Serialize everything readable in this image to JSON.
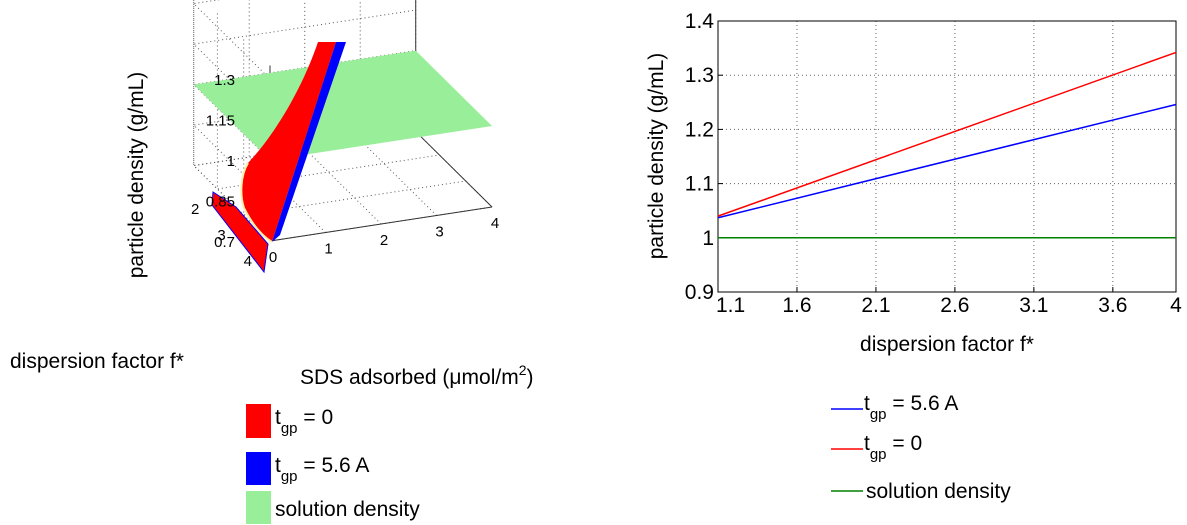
{
  "chart_data": [
    {
      "type": "surface3d",
      "zlabel": "particle density (g/mL)",
      "ylabel": "dispersion factor f*",
      "xlabel_prefix": "SDS adsorbed (",
      "xlabel_mu": "μ",
      "xlabel_unit": "mol/m",
      "xlabel_sup": "2",
      "xlabel_close": ")",
      "xticks": [
        "0",
        "1",
        "2",
        "3",
        "4"
      ],
      "yticks": [
        "2",
        "3",
        "4"
      ],
      "zticks": [
        "0.7",
        "0.85",
        "1",
        "1.15",
        "1.3"
      ],
      "xlim": [
        0,
        4
      ],
      "ylim": [
        1.1,
        4
      ],
      "zlim": [
        0.7,
        1.3
      ],
      "series": [
        {
          "name_main": "t",
          "name_sub": "gp",
          "name_rest": " = 0",
          "color": "#ff0000"
        },
        {
          "name_main": "t",
          "name_sub": "gp",
          "name_rest": " = 5.6 A",
          "color": "#0000ff"
        },
        {
          "name_main": "solution density",
          "name_sub": "",
          "name_rest": "",
          "color": "#99ee99",
          "value": 1.0
        }
      ]
    },
    {
      "type": "line",
      "xlabel": "dispersion factor f*",
      "ylabel": "particle density (g/mL)",
      "xticks": [
        "1.1",
        "1.6",
        "2.1",
        "2.6",
        "3.1",
        "3.6",
        "4"
      ],
      "yticks": [
        "0.9",
        "1",
        "1.1",
        "1.2",
        "1.3",
        "1.4"
      ],
      "xlim": [
        1.1,
        4
      ],
      "ylim": [
        0.9,
        1.4
      ],
      "grid": true,
      "series": [
        {
          "name_main": "t",
          "name_sub": "gp",
          "name_rest": " = 5.6 A",
          "color": "#0000ff",
          "x": [
            1.1,
            4
          ],
          "y": [
            1.037,
            1.246
          ]
        },
        {
          "name_main": "t",
          "name_sub": "gp",
          "name_rest": " = 0",
          "color": "#ff0000",
          "x": [
            1.1,
            4
          ],
          "y": [
            1.04,
            1.342
          ]
        },
        {
          "name_main": "solution density",
          "name_sub": "",
          "name_rest": "",
          "color": "#008000",
          "x": [
            1.1,
            4
          ],
          "y": [
            1.0,
            1.0
          ]
        }
      ]
    }
  ]
}
